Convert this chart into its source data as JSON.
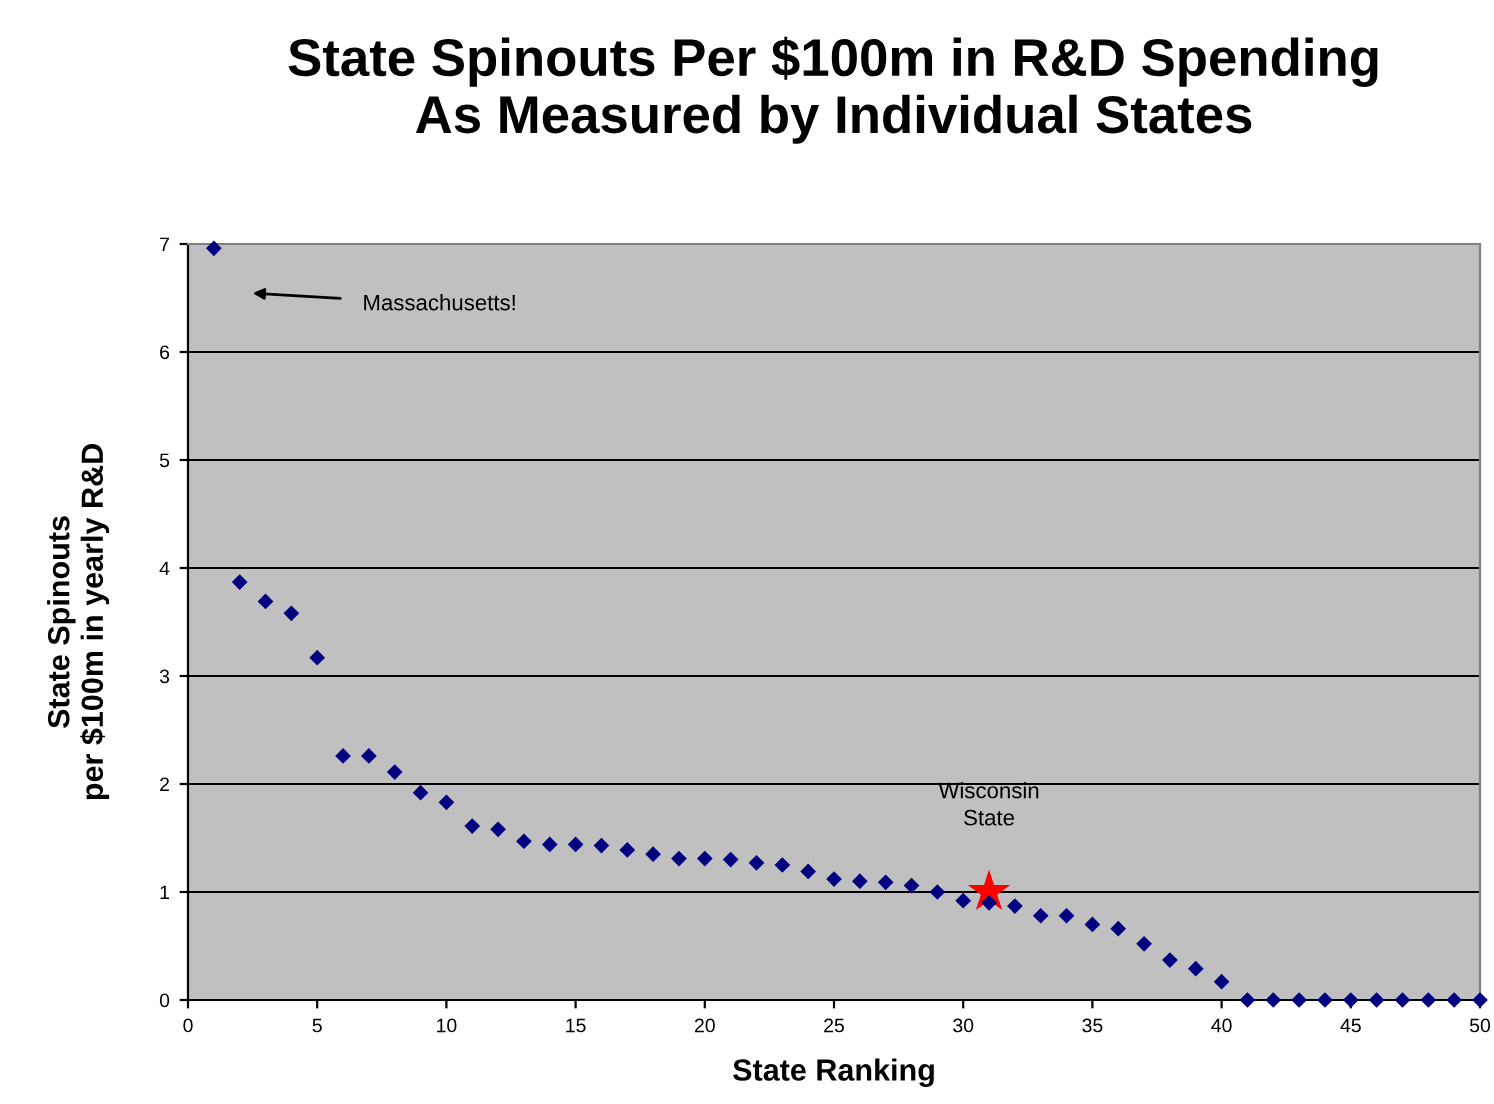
{
  "chart_data": {
    "type": "scatter",
    "title": "State Spinouts Per $100m in R&D Spending\nAs Measured by Individual States",
    "xlabel": "State Ranking",
    "ylabel": "State Spinouts\nper $100m in yearly R&D",
    "series": [
      {
        "color": "#000080",
        "marker": "diamond",
        "x": [
          1,
          2,
          3,
          4,
          5,
          6,
          7,
          8,
          9,
          10,
          11,
          12,
          13,
          14,
          15,
          16,
          17,
          18,
          19,
          20,
          21,
          22,
          23,
          24,
          25,
          26,
          27,
          28,
          29,
          30,
          31,
          32,
          33,
          34,
          35,
          36,
          37,
          38,
          39,
          40,
          41,
          42,
          43,
          44,
          45,
          46,
          47,
          48,
          49,
          50
        ],
        "values": [
          6.96,
          3.87,
          3.69,
          3.58,
          3.17,
          2.26,
          2.26,
          2.11,
          1.92,
          1.83,
          1.61,
          1.58,
          1.47,
          1.44,
          1.44,
          1.43,
          1.39,
          1.35,
          1.31,
          1.31,
          1.3,
          1.27,
          1.25,
          1.19,
          1.12,
          1.1,
          1.09,
          1.06,
          1.0,
          0.92,
          0.9,
          0.87,
          0.78,
          0.78,
          0.7,
          0.66,
          0.52,
          0.37,
          0.29,
          0.17,
          0,
          0,
          0,
          0,
          0,
          0,
          0,
          0,
          0,
          0
        ]
      },
      {
        "color": "#ff0000",
        "marker": "star",
        "x": [
          31
        ],
        "values": [
          1.0
        ]
      }
    ],
    "annotations": [
      "Massachusetts!",
      "Wisconsin\nState"
    ],
    "xlim": [
      0,
      50
    ],
    "xticks": [
      0,
      5,
      10,
      15,
      20,
      25,
      30,
      35,
      40,
      45,
      50
    ],
    "ylim": [
      0,
      7
    ],
    "yticks": [
      0,
      1,
      2,
      3,
      4,
      5,
      6,
      7
    ],
    "grid": "y"
  }
}
